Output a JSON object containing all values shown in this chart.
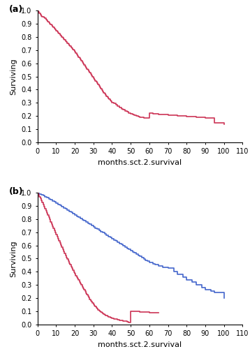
{
  "panel_a": {
    "label": "(a)",
    "color": "#cc3355",
    "curve_x": [
      0,
      0.5,
      1,
      1.5,
      2,
      2.5,
      3,
      3.5,
      4,
      4.5,
      5,
      5.5,
      6,
      6.5,
      7,
      7.5,
      8,
      8.5,
      9,
      9.5,
      10,
      10.5,
      11,
      11.5,
      12,
      12.5,
      13,
      13.5,
      14,
      14.5,
      15,
      15.5,
      16,
      16.5,
      17,
      17.5,
      18,
      18.5,
      19,
      19.5,
      20,
      20.5,
      21,
      21.5,
      22,
      22.5,
      23,
      23.5,
      24,
      24.5,
      25,
      25.5,
      26,
      26.5,
      27,
      27.5,
      28,
      28.5,
      29,
      29.5,
      30,
      30.5,
      31,
      31.5,
      32,
      32.5,
      33,
      33.5,
      34,
      34.5,
      35,
      35.5,
      36,
      36.5,
      37,
      37.5,
      38,
      38.5,
      39,
      39.5,
      40,
      41,
      42,
      43,
      44,
      45,
      46,
      47,
      48,
      49,
      50,
      51,
      52,
      53,
      54,
      55,
      57,
      60,
      62,
      65,
      70,
      75,
      80,
      85,
      90,
      95,
      100
    ],
    "curve_y": [
      1.0,
      0.99,
      0.98,
      0.97,
      0.96,
      0.955,
      0.95,
      0.945,
      0.94,
      0.932,
      0.925,
      0.917,
      0.91,
      0.902,
      0.895,
      0.887,
      0.88,
      0.872,
      0.864,
      0.856,
      0.848,
      0.84,
      0.832,
      0.824,
      0.816,
      0.808,
      0.8,
      0.792,
      0.784,
      0.776,
      0.768,
      0.76,
      0.752,
      0.744,
      0.736,
      0.728,
      0.72,
      0.712,
      0.704,
      0.696,
      0.688,
      0.678,
      0.668,
      0.658,
      0.648,
      0.638,
      0.628,
      0.618,
      0.608,
      0.598,
      0.588,
      0.578,
      0.568,
      0.558,
      0.548,
      0.538,
      0.528,
      0.518,
      0.508,
      0.498,
      0.488,
      0.478,
      0.468,
      0.458,
      0.448,
      0.438,
      0.428,
      0.418,
      0.408,
      0.398,
      0.388,
      0.378,
      0.368,
      0.36,
      0.352,
      0.344,
      0.336,
      0.328,
      0.32,
      0.312,
      0.304,
      0.294,
      0.284,
      0.274,
      0.264,
      0.256,
      0.248,
      0.24,
      0.232,
      0.224,
      0.218,
      0.212,
      0.206,
      0.2,
      0.195,
      0.19,
      0.185,
      0.22,
      0.215,
      0.21,
      0.205,
      0.2,
      0.195,
      0.19,
      0.185,
      0.15,
      0.14
    ]
  },
  "panel_b": {
    "label": "(b)",
    "blue_color": "#4466cc",
    "red_color": "#cc3355",
    "blue_x": [
      0,
      1,
      2,
      3,
      4,
      5,
      6,
      7,
      8,
      9,
      10,
      11,
      12,
      13,
      14,
      15,
      16,
      17,
      18,
      19,
      20,
      21,
      22,
      23,
      24,
      25,
      26,
      27,
      28,
      29,
      30,
      31,
      32,
      33,
      34,
      35,
      36,
      37,
      38,
      39,
      40,
      41,
      42,
      43,
      44,
      45,
      46,
      47,
      48,
      49,
      50,
      51,
      52,
      53,
      54,
      55,
      56,
      57,
      58,
      59,
      60,
      62,
      63,
      65,
      67,
      70,
      73,
      75,
      78,
      80,
      83,
      85,
      88,
      90,
      93,
      95,
      100
    ],
    "blue_y": [
      1.0,
      0.99,
      0.985,
      0.978,
      0.97,
      0.962,
      0.954,
      0.946,
      0.938,
      0.93,
      0.921,
      0.912,
      0.903,
      0.894,
      0.885,
      0.876,
      0.867,
      0.858,
      0.849,
      0.84,
      0.831,
      0.822,
      0.813,
      0.804,
      0.795,
      0.786,
      0.777,
      0.768,
      0.759,
      0.75,
      0.741,
      0.732,
      0.723,
      0.714,
      0.705,
      0.696,
      0.687,
      0.678,
      0.669,
      0.66,
      0.651,
      0.642,
      0.633,
      0.624,
      0.615,
      0.606,
      0.597,
      0.588,
      0.579,
      0.57,
      0.561,
      0.552,
      0.543,
      0.534,
      0.525,
      0.516,
      0.507,
      0.498,
      0.489,
      0.48,
      0.471,
      0.462,
      0.453,
      0.444,
      0.435,
      0.426,
      0.4,
      0.38,
      0.36,
      0.34,
      0.32,
      0.3,
      0.28,
      0.265,
      0.255,
      0.245,
      0.2
    ],
    "red_x": [
      0,
      0.5,
      1,
      1.5,
      2,
      2.5,
      3,
      3.5,
      4,
      4.5,
      5,
      5.5,
      6,
      6.5,
      7,
      7.5,
      8,
      8.5,
      9,
      9.5,
      10,
      10.5,
      11,
      11.5,
      12,
      12.5,
      13,
      13.5,
      14,
      14.5,
      15,
      15.5,
      16,
      16.5,
      17,
      17.5,
      18,
      18.5,
      19,
      19.5,
      20,
      20.5,
      21,
      21.5,
      22,
      22.5,
      23,
      23.5,
      24,
      24.5,
      25,
      25.5,
      26,
      26.5,
      27,
      27.5,
      28,
      28.5,
      29,
      29.5,
      30,
      30.5,
      31,
      31.5,
      32,
      32.5,
      33,
      33.5,
      34,
      34.5,
      35,
      35.5,
      36,
      36.5,
      37,
      37.5,
      38,
      38.5,
      39,
      39.5,
      40,
      41,
      42,
      43,
      44,
      45,
      46,
      47,
      48,
      49,
      50,
      51,
      52,
      53,
      55,
      60,
      65
    ],
    "red_y": [
      1.0,
      0.985,
      0.97,
      0.955,
      0.94,
      0.924,
      0.908,
      0.892,
      0.876,
      0.86,
      0.844,
      0.828,
      0.812,
      0.796,
      0.78,
      0.764,
      0.748,
      0.732,
      0.716,
      0.7,
      0.684,
      0.668,
      0.652,
      0.636,
      0.62,
      0.604,
      0.588,
      0.572,
      0.556,
      0.54,
      0.524,
      0.51,
      0.496,
      0.482,
      0.468,
      0.454,
      0.44,
      0.426,
      0.412,
      0.398,
      0.384,
      0.372,
      0.36,
      0.348,
      0.336,
      0.324,
      0.312,
      0.3,
      0.288,
      0.276,
      0.264,
      0.252,
      0.24,
      0.228,
      0.216,
      0.204,
      0.192,
      0.182,
      0.172,
      0.162,
      0.152,
      0.144,
      0.136,
      0.128,
      0.12,
      0.113,
      0.106,
      0.1,
      0.094,
      0.088,
      0.083,
      0.079,
      0.075,
      0.071,
      0.067,
      0.063,
      0.06,
      0.057,
      0.054,
      0.051,
      0.048,
      0.044,
      0.04,
      0.036,
      0.033,
      0.03,
      0.027,
      0.024,
      0.021,
      0.018,
      0.1,
      0.1,
      0.1,
      0.1,
      0.095,
      0.09,
      0.09
    ]
  },
  "xlabel": "months.sct.2.survival",
  "ylabel": "Surviving",
  "xlim": [
    0,
    110
  ],
  "ylim": [
    0.0,
    1.0
  ],
  "xticks": [
    0,
    10,
    20,
    30,
    40,
    50,
    60,
    70,
    80,
    90,
    100,
    110
  ],
  "yticks": [
    0.0,
    0.1,
    0.2,
    0.3,
    0.4,
    0.5,
    0.6,
    0.7,
    0.8,
    0.9,
    1.0
  ],
  "tick_fontsize": 7,
  "label_fontsize": 8,
  "panel_label_fontsize": 9,
  "line_width": 1.2
}
